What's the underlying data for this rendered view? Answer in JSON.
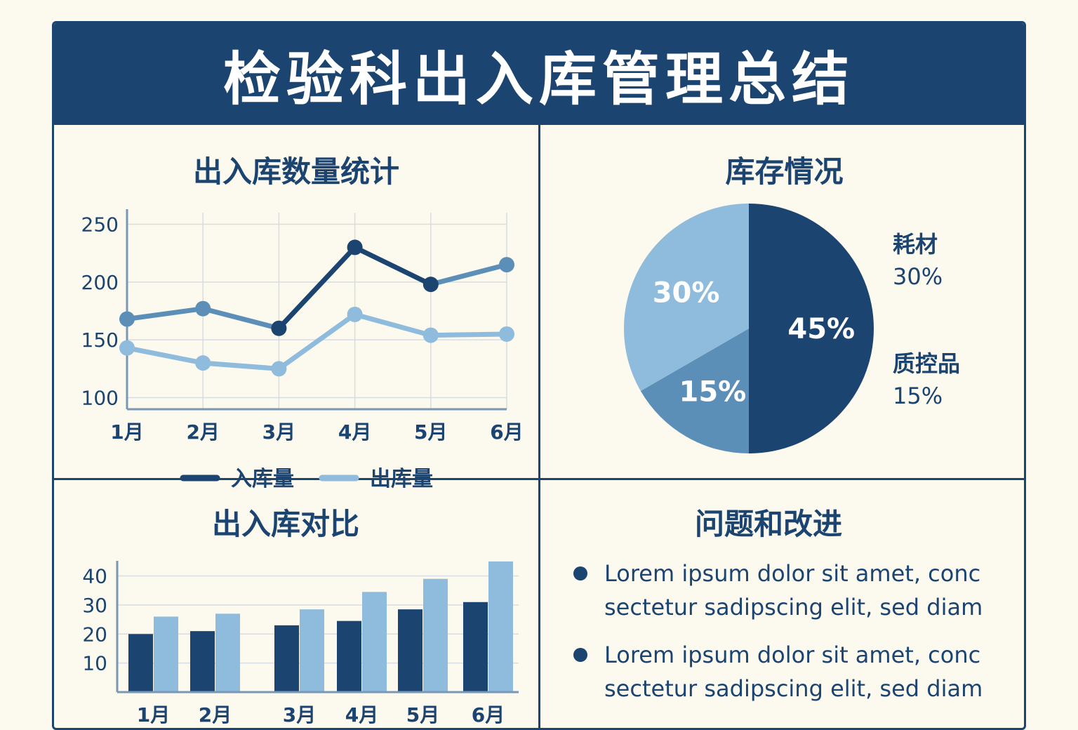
{
  "title": "检验科出入库管理总结",
  "colors": {
    "dark": "#1c4470",
    "medium": "#5b8fb8",
    "light": "#8fbcdc",
    "background": "#fcf9ee"
  },
  "panels": {
    "line_title": "出入库数量统计",
    "pie_title": "库存情况",
    "bar_title": "出入库对比",
    "issues_title": "问题和改进"
  },
  "legend": {
    "in_label": "入库量",
    "out_label": "出库量"
  },
  "pie_labels": [
    {
      "name": "耗材",
      "value": "30%"
    },
    {
      "name": "质控品",
      "value": "15%"
    }
  ],
  "issues": [
    {
      "line1": "Lorem ipsum dolor sit amet, conc",
      "line2": "sectetur sadipscing elit, sed diam"
    },
    {
      "line1": "Lorem ipsum dolor sit amet, conc",
      "line2": "sectetur sadipscing elit, sed diam"
    }
  ],
  "chart_data": [
    {
      "type": "line",
      "title": "出入库数量统计",
      "categories": [
        "1月",
        "2月",
        "3月",
        "4月",
        "5月",
        "6月"
      ],
      "ylim": [
        90,
        260
      ],
      "yticks": [
        100,
        150,
        200,
        250
      ],
      "grid": true,
      "legend_position": "bottom",
      "series": [
        {
          "name": "入库量",
          "values": [
            168,
            177,
            160,
            230,
            198,
            215
          ]
        },
        {
          "name": "出库量",
          "values": [
            143,
            130,
            125,
            172,
            154,
            155
          ]
        }
      ]
    },
    {
      "type": "pie",
      "title": "库存情况",
      "slices": [
        {
          "label": "45%",
          "value": 45
        },
        {
          "label": "15%",
          "value": 15
        },
        {
          "label": "30%",
          "value": 30
        }
      ]
    },
    {
      "type": "bar",
      "title": "出入库对比",
      "categories": [
        "1月",
        "2月",
        "3月",
        "4月",
        "5月",
        "6月"
      ],
      "ylim": [
        0,
        44
      ],
      "yticks": [
        10,
        20,
        30,
        40
      ],
      "grid": true,
      "series": [
        {
          "values": [
            20,
            21,
            23,
            24.5,
            28.5,
            31
          ]
        },
        {
          "values": [
            26,
            27,
            28.5,
            34.5,
            39,
            45
          ]
        }
      ]
    }
  ]
}
